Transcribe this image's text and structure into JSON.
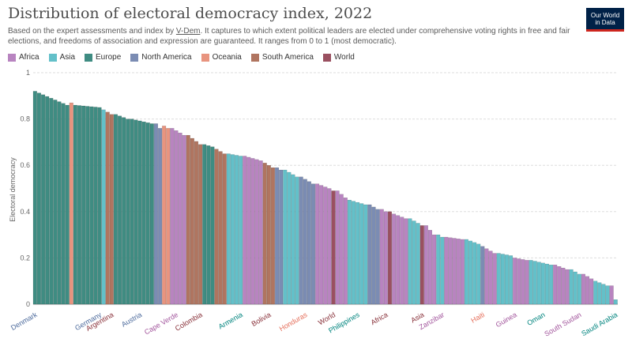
{
  "header": {
    "title": "Distribution of electoral democracy index, 2022",
    "subtitle_pre": "Based on the expert assessments and index by ",
    "subtitle_link": "V-Dem",
    "subtitle_post": ". It captures to which extent political leaders are elected under comprehensive voting rights in free and fair elections, and freedoms of association and expression are guaranteed. It ranges from 0 to 1 (most democratic).",
    "logo_line1": "Our World",
    "logo_line2": "in Data"
  },
  "colors": {
    "Africa": "#a2559c",
    "Asia": "#00847e",
    "Europe": "#4c6a9c",
    "North America": "#e56e5a",
    "Oceania": "#9a5129",
    "South America": "#883039",
    "World": "#883039"
  },
  "fill_colors": {
    "Africa": "#b884c0",
    "Asia": "#63c0c9",
    "Europe": "#3f8c82",
    "North America": "#7b8cb3",
    "Oceania": "#e8947f",
    "South America": "#b07560",
    "World": "#9a5060"
  },
  "chart_data": {
    "type": "bar",
    "ylabel": "Electoral democracy",
    "ylim": [
      0,
      1
    ],
    "yticks": [
      0,
      0.2,
      0.4,
      0.6,
      0.8,
      1
    ],
    "yticklabels": [
      "0",
      "0.2",
      "0.4",
      "0.6",
      "0.8",
      "1"
    ],
    "grid": true,
    "legend": [
      "Africa",
      "Asia",
      "Europe",
      "North America",
      "Oceania",
      "South America",
      "World"
    ],
    "legend_position": "top-left",
    "labeled_categories": [
      {
        "label": "Denmark",
        "region": "Europe",
        "value": 0.92
      },
      {
        "label": "Germany",
        "region": "Europe",
        "value": 0.85
      },
      {
        "label": "Argentina",
        "region": "South America",
        "value": 0.82
      },
      {
        "label": "Austria",
        "region": "Europe",
        "value": 0.79
      },
      {
        "label": "Cape Verde",
        "region": "Africa",
        "value": 0.75
      },
      {
        "label": "Colombia",
        "region": "South America",
        "value": 0.69
      },
      {
        "label": "Armenia",
        "region": "Asia",
        "value": 0.64
      },
      {
        "label": "Bolivia",
        "region": "South America",
        "value": 0.6
      },
      {
        "label": "Honduras",
        "region": "North America",
        "value": 0.54
      },
      {
        "label": "World",
        "region": "World",
        "value": 0.49
      },
      {
        "label": "Philippines",
        "region": "Asia",
        "value": 0.44
      },
      {
        "label": "Africa",
        "region": "World",
        "value": 0.4
      },
      {
        "label": "Asia",
        "region": "World",
        "value": 0.34
      },
      {
        "label": "Zanzibar",
        "region": "Africa",
        "value": 0.29
      },
      {
        "label": "Haiti",
        "region": "North America",
        "value": 0.25
      },
      {
        "label": "Guinea",
        "region": "Africa",
        "value": 0.2
      },
      {
        "label": "Oman",
        "region": "Asia",
        "value": 0.18
      },
      {
        "label": "South Sudan",
        "region": "Africa",
        "value": 0.13
      },
      {
        "label": "Saudi Arabia",
        "region": "Asia",
        "value": 0.02
      }
    ],
    "segments": [
      {
        "region": "Europe",
        "start": 0.92,
        "end": 0.86,
        "count": 9
      },
      {
        "region": "Oceania",
        "start": 0.87,
        "end": 0.87,
        "count": 1
      },
      {
        "region": "Europe",
        "start": 0.86,
        "end": 0.85,
        "count": 7
      },
      {
        "region": "Asia",
        "start": 0.84,
        "end": 0.84,
        "count": 1
      },
      {
        "region": "South America",
        "start": 0.83,
        "end": 0.82,
        "count": 2
      },
      {
        "region": "Europe",
        "start": 0.82,
        "end": 0.8,
        "count": 4
      },
      {
        "region": "Europe",
        "start": 0.8,
        "end": 0.78,
        "count": 6
      },
      {
        "region": "North America",
        "start": 0.78,
        "end": 0.76,
        "count": 2
      },
      {
        "region": "Oceania",
        "start": 0.77,
        "end": 0.76,
        "count": 2
      },
      {
        "region": "Africa",
        "start": 0.76,
        "end": 0.73,
        "count": 4
      },
      {
        "region": "South America",
        "start": 0.73,
        "end": 0.69,
        "count": 4
      },
      {
        "region": "Europe",
        "start": 0.69,
        "end": 0.68,
        "count": 3
      },
      {
        "region": "South America",
        "start": 0.67,
        "end": 0.65,
        "count": 3
      },
      {
        "region": "Asia",
        "start": 0.65,
        "end": 0.64,
        "count": 4
      },
      {
        "region": "Africa",
        "start": 0.64,
        "end": 0.62,
        "count": 5
      },
      {
        "region": "South America",
        "start": 0.61,
        "end": 0.59,
        "count": 3
      },
      {
        "region": "North America",
        "start": 0.59,
        "end": 0.58,
        "count": 2
      },
      {
        "region": "Asia",
        "start": 0.58,
        "end": 0.55,
        "count": 4
      },
      {
        "region": "North America",
        "start": 0.55,
        "end": 0.52,
        "count": 4
      },
      {
        "region": "Africa",
        "start": 0.52,
        "end": 0.5,
        "count": 4
      },
      {
        "region": "World",
        "start": 0.49,
        "end": 0.49,
        "count": 1
      },
      {
        "region": "Africa",
        "start": 0.49,
        "end": 0.46,
        "count": 3
      },
      {
        "region": "Asia",
        "start": 0.45,
        "end": 0.43,
        "count": 5
      },
      {
        "region": "North America",
        "start": 0.43,
        "end": 0.41,
        "count": 3
      },
      {
        "region": "Africa",
        "start": 0.41,
        "end": 0.4,
        "count": 2
      },
      {
        "region": "World",
        "start": 0.4,
        "end": 0.4,
        "count": 1
      },
      {
        "region": "Africa",
        "start": 0.39,
        "end": 0.37,
        "count": 4
      },
      {
        "region": "Asia",
        "start": 0.37,
        "end": 0.35,
        "count": 3
      },
      {
        "region": "World",
        "start": 0.34,
        "end": 0.34,
        "count": 1
      },
      {
        "region": "Africa",
        "start": 0.34,
        "end": 0.3,
        "count": 3
      },
      {
        "region": "Asia",
        "start": 0.3,
        "end": 0.29,
        "count": 2
      },
      {
        "region": "Africa",
        "start": 0.29,
        "end": 0.28,
        "count": 5
      },
      {
        "region": "Asia",
        "start": 0.28,
        "end": 0.26,
        "count": 4
      },
      {
        "region": "North America",
        "start": 0.25,
        "end": 0.25,
        "count": 1
      },
      {
        "region": "Africa",
        "start": 0.24,
        "end": 0.22,
        "count": 3
      },
      {
        "region": "Asia",
        "start": 0.22,
        "end": 0.21,
        "count": 4
      },
      {
        "region": "Africa",
        "start": 0.2,
        "end": 0.19,
        "count": 4
      },
      {
        "region": "Asia",
        "start": 0.19,
        "end": 0.17,
        "count": 6
      },
      {
        "region": "Africa",
        "start": 0.17,
        "end": 0.15,
        "count": 4
      },
      {
        "region": "Asia",
        "start": 0.15,
        "end": 0.13,
        "count": 3
      },
      {
        "region": "Africa",
        "start": 0.13,
        "end": 0.11,
        "count": 3
      },
      {
        "region": "Asia",
        "start": 0.1,
        "end": 0.08,
        "count": 4
      },
      {
        "region": "Africa",
        "start": 0.08,
        "end": 0.07,
        "count": 1
      },
      {
        "region": "Asia",
        "start": 0.02,
        "end": 0.02,
        "count": 1
      }
    ]
  }
}
